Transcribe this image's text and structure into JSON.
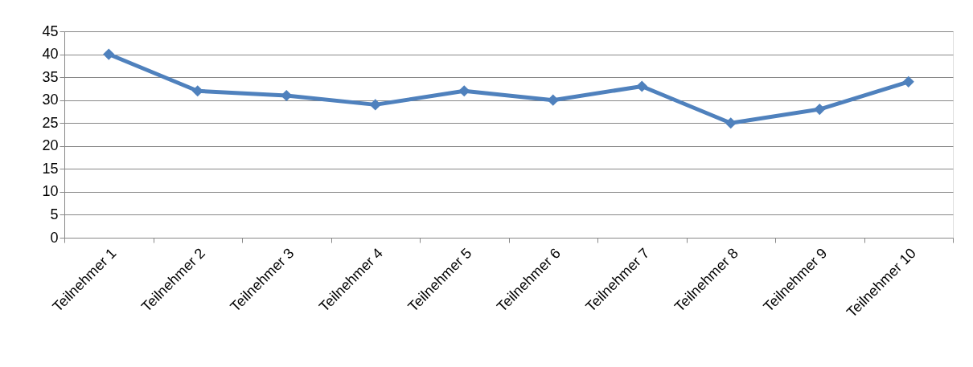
{
  "chart_data": {
    "type": "line",
    "categories": [
      "Teilnehmer 1",
      "Teilnehmer 2",
      "Teilnehmer 3",
      "Teilnehmer 4",
      "Teilnehmer 5",
      "Teilnehmer 6",
      "Teilnehmer 7",
      "Teilnehmer 8",
      "Teilnehmer 9",
      "Teilnehmer 10"
    ],
    "series": [
      {
        "color": "#4f81bd",
        "values": [
          40,
          32,
          31,
          29,
          32,
          30,
          33,
          25,
          28,
          34
        ]
      }
    ],
    "ylim": [
      0,
      45
    ],
    "yticks": [
      0,
      5,
      10,
      15,
      20,
      25,
      30,
      35,
      40,
      45
    ],
    "grid": "y",
    "marker": "diamond",
    "line_style": "solid"
  }
}
